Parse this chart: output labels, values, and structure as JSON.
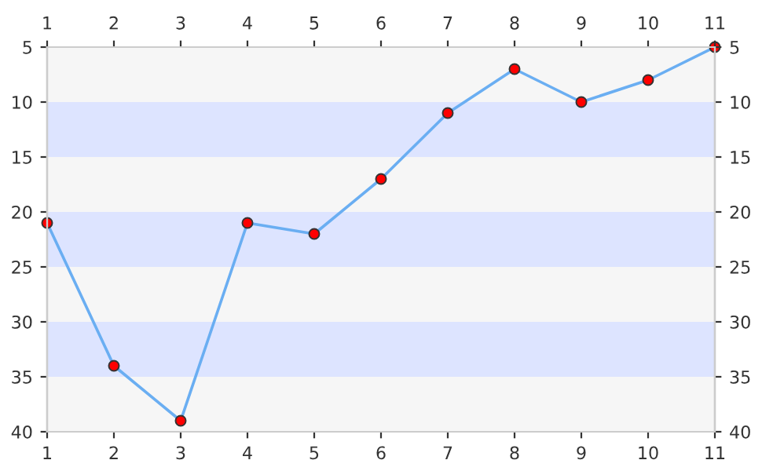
{
  "chart_data": {
    "type": "line",
    "x": [
      1,
      2,
      3,
      4,
      5,
      6,
      7,
      8,
      9,
      10,
      11
    ],
    "series": [
      {
        "color": "#6aaef2",
        "colors": [
          "#ff0000",
          "#ff0000",
          "#ff0000",
          "#ff0000",
          "#ff0000",
          "#ff0000",
          "#ff0000",
          "#ff0000",
          "#ff0000",
          "#ff0000",
          "#ff0000"
        ],
        "values": [
          21,
          34,
          39,
          21,
          22,
          17,
          11,
          7,
          10,
          8,
          5
        ]
      }
    ],
    "marker": "circle",
    "line_style": "solid",
    "grid": false,
    "legend": false,
    "xlim": [
      1,
      11
    ],
    "xticks": [
      1,
      2,
      3,
      4,
      5,
      6,
      7,
      8,
      9,
      10,
      11
    ],
    "x2lim": [
      1,
      11
    ],
    "x2ticks": [
      1,
      2,
      3,
      4,
      5,
      6,
      7,
      8,
      9,
      10,
      11
    ],
    "ylim": [
      40,
      5
    ],
    "yticks": [
      5,
      10,
      15,
      20,
      25,
      30,
      35,
      40
    ],
    "y2lim": [
      40,
      5
    ],
    "y2ticks": [
      5,
      10,
      15,
      20,
      25,
      30,
      35,
      40
    ],
    "bands": [
      {
        "axis": "y",
        "from": 5,
        "to": 10,
        "color": "#f6f6f6"
      },
      {
        "axis": "y",
        "from": 10,
        "to": 15,
        "color": "#dde4ff"
      },
      {
        "axis": "y",
        "from": 15,
        "to": 20,
        "color": "#f6f6f6"
      },
      {
        "axis": "y",
        "from": 20,
        "to": 25,
        "color": "#dde4ff"
      },
      {
        "axis": "y",
        "from": 25,
        "to": 30,
        "color": "#f6f6f6"
      },
      {
        "axis": "y",
        "from": 30,
        "to": 35,
        "color": "#dde4ff"
      },
      {
        "axis": "y",
        "from": 35,
        "to": 40,
        "color": "#f6f6f6"
      }
    ]
  }
}
